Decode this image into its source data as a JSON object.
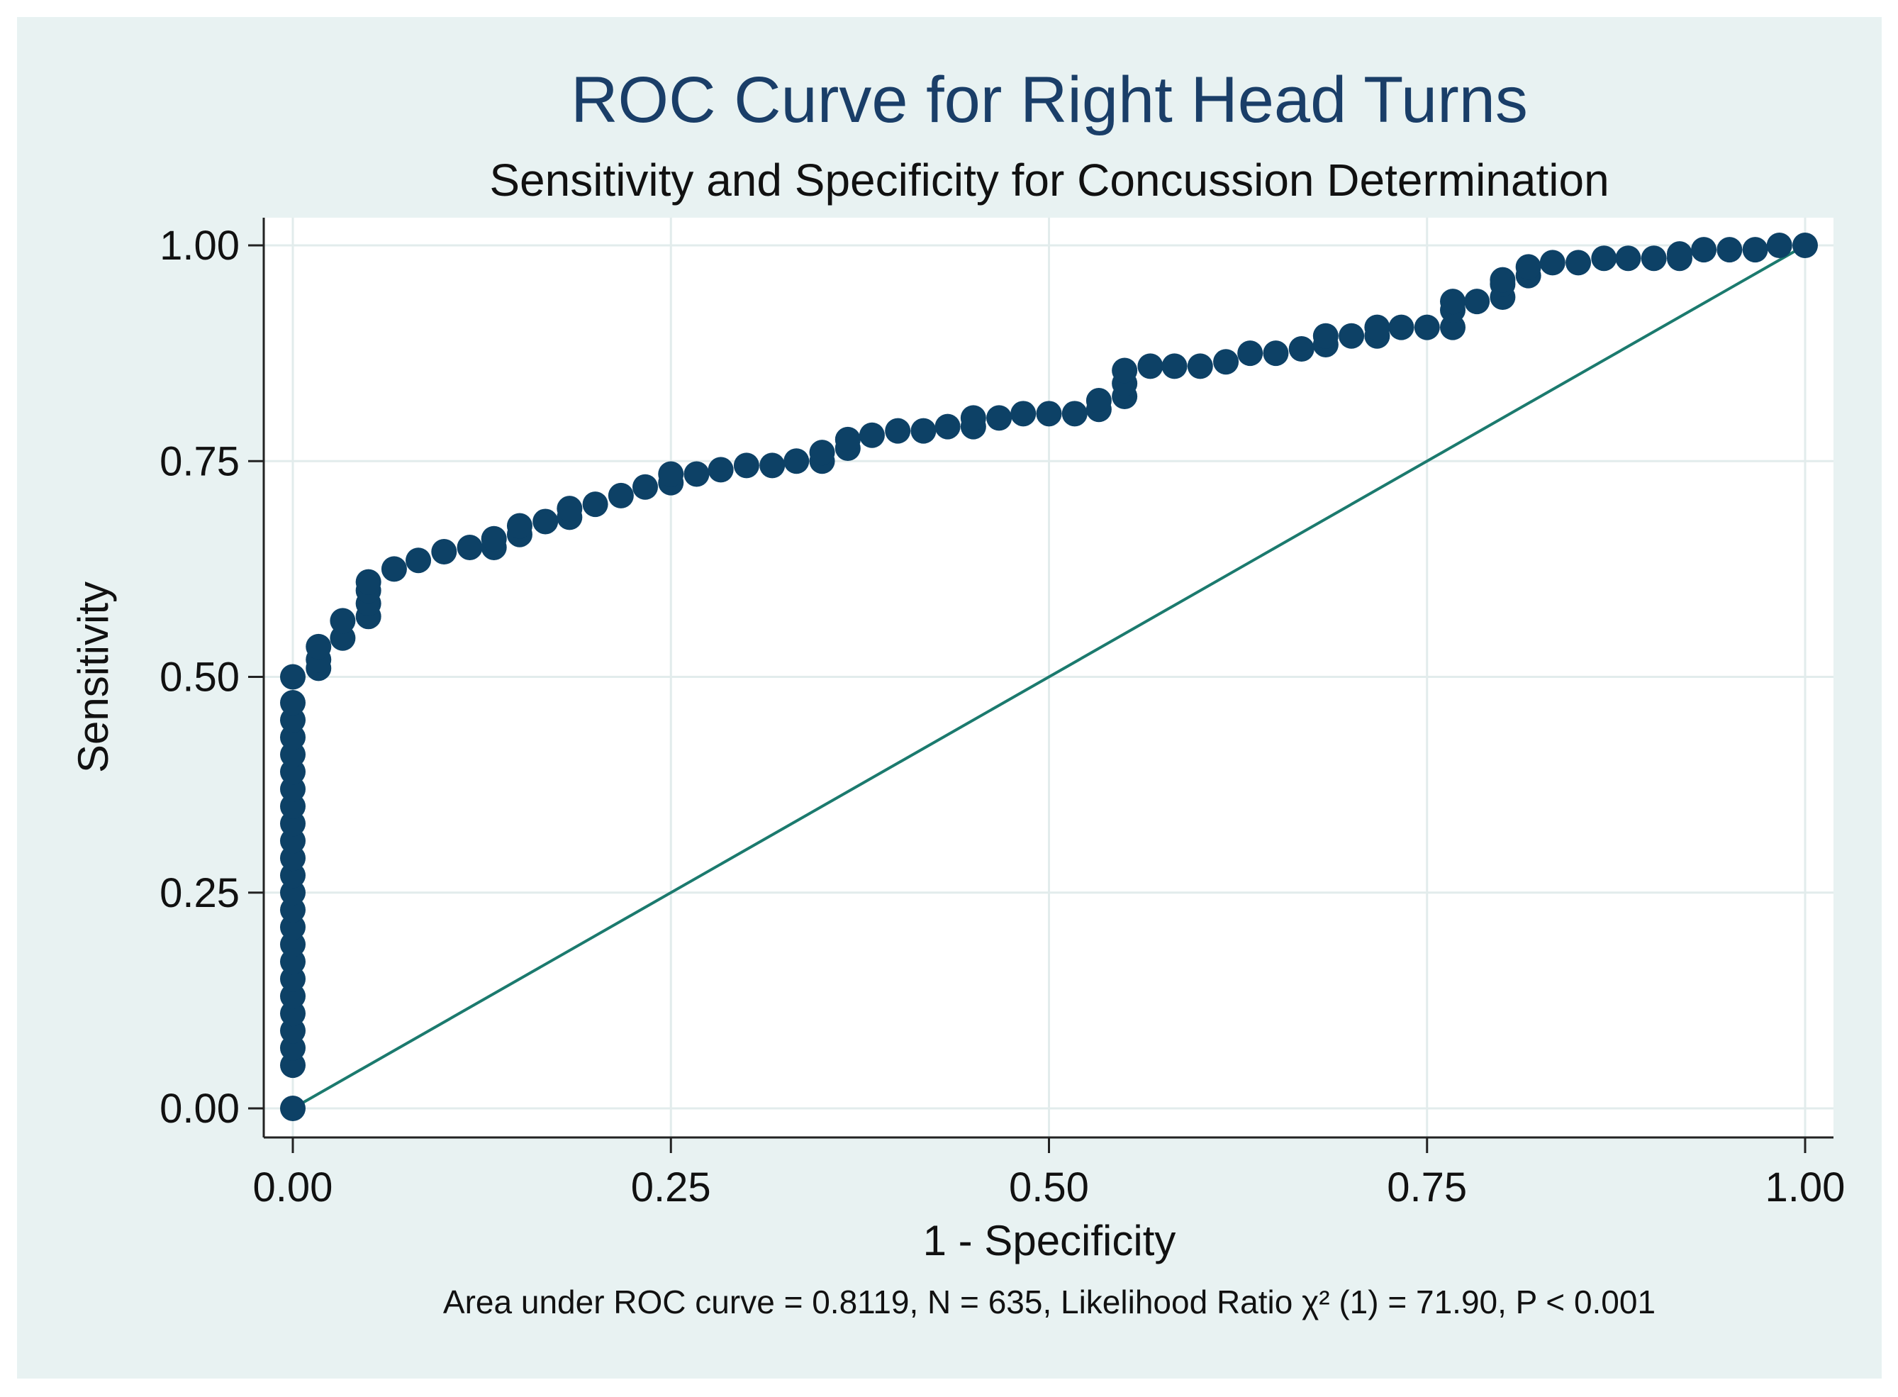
{
  "chart_data": {
    "type": "scatter",
    "title": "ROC Curve for Right Head Turns",
    "subtitle": "Sensitivity and Specificity for Concussion Determination",
    "xlabel": "1 - Specificity",
    "ylabel": "Sensitivity",
    "note": "Area under ROC curve = 0.8119, N = 635, Likelihood Ratio χ² (1) = 71.90, P < 0.001",
    "xlim": [
      0,
      1
    ],
    "ylim": [
      0,
      1
    ],
    "x_ticks": [
      {
        "value": 0,
        "label": "0.00"
      },
      {
        "value": 0.25,
        "label": "0.25"
      },
      {
        "value": 0.5,
        "label": "0.50"
      },
      {
        "value": 0.75,
        "label": "0.75"
      },
      {
        "value": 1,
        "label": "1.00"
      }
    ],
    "y_ticks": [
      {
        "value": 0,
        "label": "0.00"
      },
      {
        "value": 0.25,
        "label": "0.25"
      },
      {
        "value": 0.5,
        "label": "0.50"
      },
      {
        "value": 0.75,
        "label": "0.75"
      },
      {
        "value": 1,
        "label": "1.00"
      }
    ],
    "grid": true,
    "colors": {
      "background": "#e8f2f2",
      "plot_bg": "#ffffff",
      "marker": "#0d4166",
      "reference": "#1b7a6e",
      "grid": "#e2ecec"
    },
    "series": [
      {
        "name": "ROC curve",
        "x": [
          0,
          0,
          0,
          0,
          0,
          0,
          0,
          0,
          0,
          0,
          0,
          0,
          0,
          0,
          0,
          0,
          0,
          0,
          0,
          0,
          0,
          0,
          0,
          0,
          0.017,
          0.017,
          0.017,
          0.033,
          0.033,
          0.05,
          0.05,
          0.05,
          0.05,
          0.067,
          0.083,
          0.1,
          0.117,
          0.133,
          0.133,
          0.15,
          0.15,
          0.167,
          0.183,
          0.183,
          0.2,
          0.217,
          0.233,
          0.25,
          0.25,
          0.267,
          0.283,
          0.3,
          0.317,
          0.333,
          0.35,
          0.35,
          0.367,
          0.367,
          0.383,
          0.4,
          0.417,
          0.433,
          0.45,
          0.45,
          0.467,
          0.483,
          0.5,
          0.517,
          0.533,
          0.533,
          0.55,
          0.55,
          0.55,
          0.567,
          0.583,
          0.6,
          0.617,
          0.633,
          0.65,
          0.667,
          0.683,
          0.683,
          0.7,
          0.717,
          0.717,
          0.733,
          0.75,
          0.767,
          0.767,
          0.767,
          0.783,
          0.8,
          0.8,
          0.8,
          0.817,
          0.817,
          0.833,
          0.85,
          0.867,
          0.883,
          0.9,
          0.917,
          0.917,
          0.933,
          0.95,
          0.967,
          0.983,
          1.0
        ],
        "y": [
          0,
          0.05,
          0.07,
          0.09,
          0.11,
          0.13,
          0.15,
          0.17,
          0.19,
          0.21,
          0.23,
          0.25,
          0.27,
          0.29,
          0.31,
          0.33,
          0.35,
          0.37,
          0.39,
          0.41,
          0.43,
          0.45,
          0.47,
          0.5,
          0.51,
          0.52,
          0.535,
          0.545,
          0.565,
          0.57,
          0.585,
          0.6,
          0.61,
          0.625,
          0.635,
          0.645,
          0.65,
          0.65,
          0.66,
          0.665,
          0.675,
          0.68,
          0.685,
          0.695,
          0.7,
          0.71,
          0.72,
          0.725,
          0.735,
          0.735,
          0.74,
          0.745,
          0.745,
          0.75,
          0.75,
          0.76,
          0.765,
          0.775,
          0.78,
          0.785,
          0.785,
          0.79,
          0.79,
          0.8,
          0.8,
          0.805,
          0.805,
          0.805,
          0.81,
          0.82,
          0.825,
          0.84,
          0.855,
          0.86,
          0.86,
          0.86,
          0.865,
          0.875,
          0.875,
          0.88,
          0.885,
          0.895,
          0.895,
          0.895,
          0.905,
          0.905,
          0.905,
          0.905,
          0.925,
          0.935,
          0.935,
          0.94,
          0.955,
          0.96,
          0.965,
          0.975,
          0.98,
          0.98,
          0.985,
          0.985,
          0.985,
          0.985,
          0.99,
          0.995,
          0.995,
          0.995,
          1.0,
          1.0
        ]
      },
      {
        "name": "Reference line",
        "x": [
          0,
          1
        ],
        "y": [
          0,
          1
        ]
      }
    ]
  }
}
